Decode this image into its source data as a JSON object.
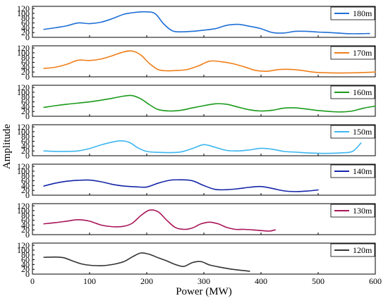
{
  "chart_data": {
    "type": "line",
    "xlabel": "Power (MW)",
    "ylabel": "Amplitude",
    "xlim": [
      0,
      600
    ],
    "ylim": [
      0,
      120
    ],
    "x_ticks": [
      "0",
      "100",
      "200",
      "300",
      "400",
      "500",
      "600"
    ],
    "y_ticks": [
      "0",
      "20",
      "40",
      "60",
      "80",
      "100",
      "120"
    ],
    "grid": false,
    "legend_position": "top-right",
    "series": [
      {
        "name": "180m",
        "color": "#1f6fd6",
        "x": [
          20,
          40,
          60,
          80,
          100,
          120,
          140,
          160,
          180,
          200,
          215,
          230,
          245,
          260,
          280,
          300,
          320,
          340,
          360,
          380,
          400,
          420,
          440,
          460,
          480,
          500,
          520,
          540,
          560,
          590
        ],
        "y": [
          33,
          40,
          48,
          60,
          57,
          63,
          78,
          96,
          104,
          106,
          98,
          55,
          27,
          23,
          25,
          30,
          36,
          50,
          54,
          46,
          36,
          20,
          18,
          25,
          25,
          22,
          20,
          17,
          15,
          16
        ]
      },
      {
        "name": "170m",
        "color": "#f07f1a",
        "x": [
          20,
          40,
          60,
          80,
          100,
          120,
          140,
          160,
          175,
          190,
          205,
          220,
          235,
          250,
          270,
          290,
          310,
          330,
          350,
          370,
          390,
          410,
          430,
          450,
          470,
          490,
          510,
          540,
          570,
          600
        ],
        "y": [
          35,
          40,
          52,
          69,
          68,
          74,
          88,
          104,
          107,
          90,
          55,
          30,
          25,
          26,
          30,
          45,
          65,
          63,
          55,
          42,
          27,
          23,
          30,
          31,
          27,
          20,
          17,
          16,
          17,
          20
        ]
      },
      {
        "name": "160m",
        "color": "#1a9a1a",
        "x": [
          20,
          40,
          60,
          80,
          100,
          120,
          140,
          160,
          175,
          190,
          205,
          220,
          240,
          260,
          280,
          300,
          320,
          340,
          360,
          380,
          400,
          420,
          440,
          460,
          480,
          500,
          520,
          540,
          560,
          580,
          600
        ],
        "y": [
          37,
          44,
          50,
          55,
          60,
          67,
          75,
          84,
          86,
          72,
          48,
          28,
          22,
          25,
          35,
          44,
          52,
          50,
          38,
          27,
          22,
          25,
          34,
          35,
          30,
          24,
          20,
          18,
          22,
          34,
          42
        ]
      },
      {
        "name": "150m",
        "color": "#3db7f0",
        "x": [
          20,
          40,
          60,
          80,
          100,
          120,
          140,
          155,
          170,
          185,
          200,
          220,
          240,
          260,
          280,
          300,
          320,
          340,
          360,
          380,
          400,
          420,
          440,
          460,
          480,
          500,
          520,
          540,
          560,
          575
        ],
        "y": [
          20,
          18,
          18,
          20,
          30,
          45,
          57,
          62,
          55,
          32,
          18,
          14,
          13,
          16,
          30,
          46,
          35,
          22,
          20,
          24,
          31,
          27,
          18,
          15,
          12,
          10,
          10,
          12,
          18,
          53
        ]
      },
      {
        "name": "140m",
        "color": "#1525a8",
        "x": [
          20,
          40,
          60,
          80,
          100,
          120,
          140,
          160,
          180,
          200,
          220,
          240,
          260,
          280,
          300,
          320,
          340,
          360,
          380,
          400,
          420,
          440,
          460,
          480,
          500
        ],
        "y": [
          38,
          50,
          58,
          62,
          63,
          56,
          45,
          38,
          35,
          34,
          50,
          62,
          64,
          60,
          40,
          24,
          23,
          27,
          33,
          36,
          28,
          18,
          15,
          17,
          22
        ]
      },
      {
        "name": "130m",
        "color": "#a81557",
        "x": [
          20,
          40,
          60,
          80,
          100,
          120,
          140,
          160,
          175,
          190,
          205,
          220,
          235,
          250,
          265,
          280,
          295,
          310,
          325,
          340,
          355,
          370,
          385,
          400,
          415,
          425
        ],
        "y": [
          45,
          50,
          56,
          62,
          56,
          40,
          33,
          35,
          48,
          80,
          102,
          95,
          60,
          30,
          22,
          28,
          45,
          52,
          45,
          30,
          22,
          22,
          20,
          17,
          15,
          20
        ]
      },
      {
        "name": "120m",
        "color": "#333333",
        "x": [
          20,
          40,
          55,
          70,
          85,
          100,
          120,
          140,
          160,
          175,
          190,
          205,
          220,
          235,
          250,
          265,
          280,
          295,
          310,
          330,
          350,
          380
        ],
        "y": [
          70,
          71,
          68,
          55,
          43,
          37,
          35,
          40,
          52,
          72,
          88,
          82,
          68,
          55,
          40,
          32,
          48,
          52,
          38,
          28,
          20,
          12
        ]
      }
    ]
  }
}
